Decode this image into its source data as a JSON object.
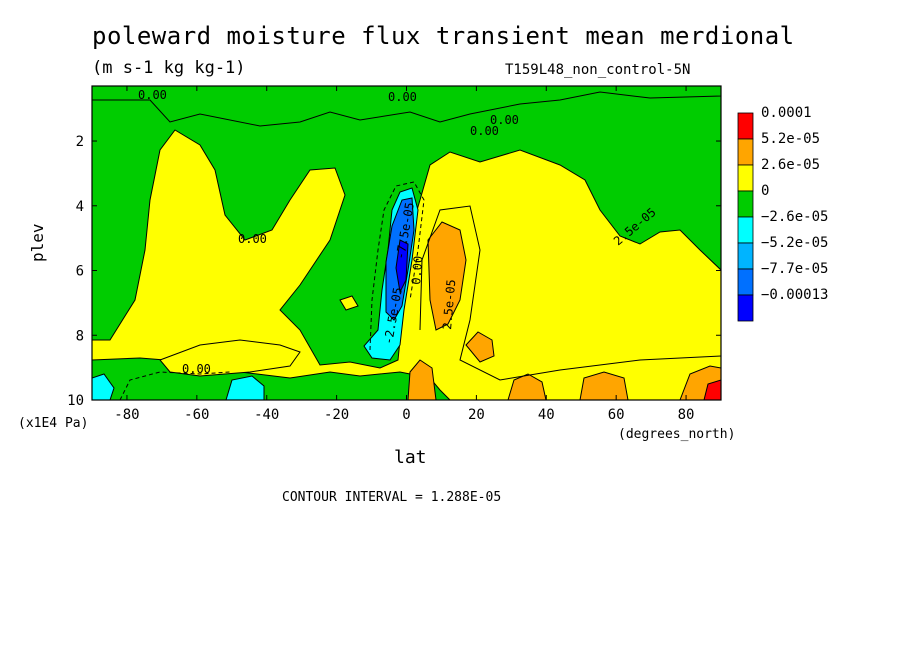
{
  "chart_data": {
    "type": "heatmap",
    "title": "poleward moisture flux transient mean merdional",
    "units": "(m s-1 kg kg-1)",
    "experiment": "T159L48_non_control-5N",
    "xlabel": "lat",
    "x_units": "(degrees_north)",
    "ylabel": "plev",
    "y_units": "(x1E4 Pa)",
    "xlim": [
      -90,
      90
    ],
    "ylim": [
      10,
      0.3
    ],
    "x_ticks": [
      "-80",
      "-60",
      "-40",
      "-20",
      "0",
      "20",
      "40",
      "60",
      "80"
    ],
    "y_ticks": [
      "2",
      "4",
      "6",
      "8",
      "10"
    ],
    "legend": {
      "labels": [
        "0.0001",
        "5.2e-05",
        "2.6e-05",
        "0",
        "−2.6e-05",
        "−5.2e-05",
        "−7.7e-05",
        "−0.00013"
      ],
      "colors": [
        "#ff0000",
        "#ffa500",
        "#ffff00",
        "#00cc00",
        "#00ffff",
        "#00b4ff",
        "#0070ff",
        "#0000ff"
      ]
    },
    "contour_labels": [
      "0.00",
      "0.00",
      "0.00",
      "0.00",
      "0.00",
      "0.00",
      "-2.5e-05",
      "-7.5e-05",
      "0.00",
      "2.5e-05",
      "2.5e-05"
    ],
    "contour_interval": "CONTOUR INTERVAL = 1.288E-05",
    "regions": [
      {
        "level": "0",
        "desc": "background near-zero positive"
      },
      {
        "level": "-2.6e-05",
        "desc": "broad weak negative band, southern hemisphere and upper levels"
      },
      {
        "level": "-5.2e-05",
        "desc": "core near equator 3-8 plev"
      },
      {
        "level": "-7.7e-05",
        "desc": "inner core near equator 5-7 plev"
      },
      {
        "level": "-0.00013",
        "desc": "minimum around -2 lat, 6 plev"
      },
      {
        "level": "2.6e-05",
        "desc": "positive maxima 5-15 lat and near surface"
      },
      {
        "level": "5.2e-05",
        "desc": "small maximum near 88 lat at 10 plev"
      }
    ]
  }
}
